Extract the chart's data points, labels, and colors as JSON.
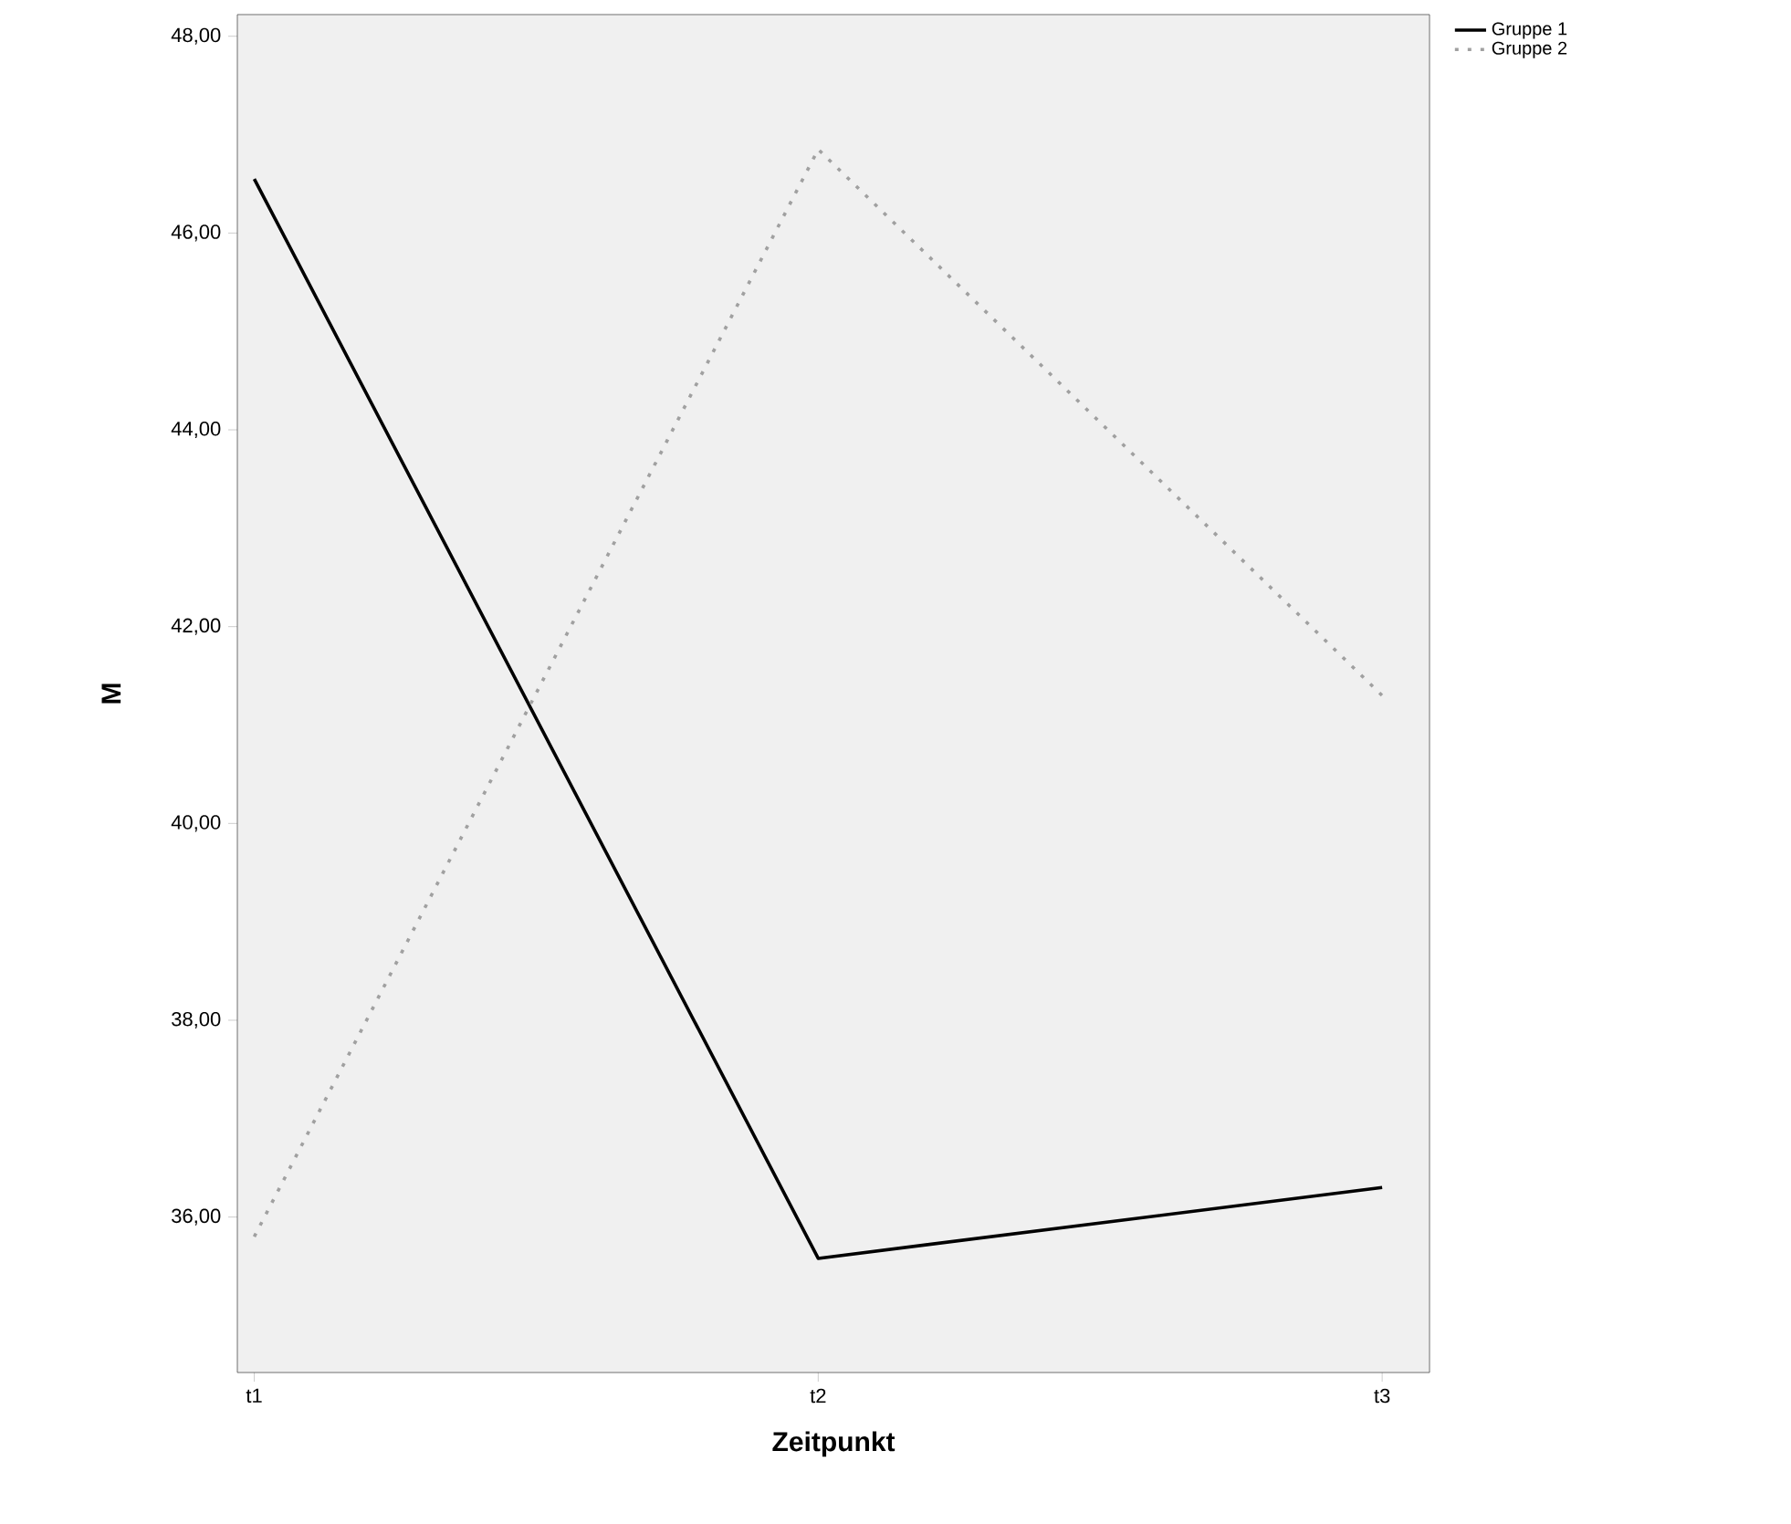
{
  "chart_data": {
    "type": "line",
    "xlabel": "Zeitpunkt",
    "ylabel": "M",
    "categories": [
      "t1",
      "t2",
      "t3"
    ],
    "series": [
      {
        "name": "Gruppe 1",
        "color": "#000000",
        "line_style": "solid",
        "values": [
          46.55,
          35.58,
          36.3
        ]
      },
      {
        "name": "Gruppe 2",
        "color": "#a0a0a0",
        "line_style": "dotted",
        "values": [
          35.8,
          46.85,
          41.3
        ]
      }
    ],
    "ylim": [
      34.42,
      48.22
    ],
    "yticks": [
      {
        "value": 36,
        "label": "36,00"
      },
      {
        "value": 38,
        "label": "38,00"
      },
      {
        "value": 40,
        "label": "40,00"
      },
      {
        "value": 42,
        "label": "42,00"
      },
      {
        "value": 44,
        "label": "44,00"
      },
      {
        "value": 46,
        "label": "46,00"
      },
      {
        "value": 48,
        "label": "48,00"
      }
    ],
    "grid": false,
    "legend": "top right",
    "marker": "none"
  }
}
